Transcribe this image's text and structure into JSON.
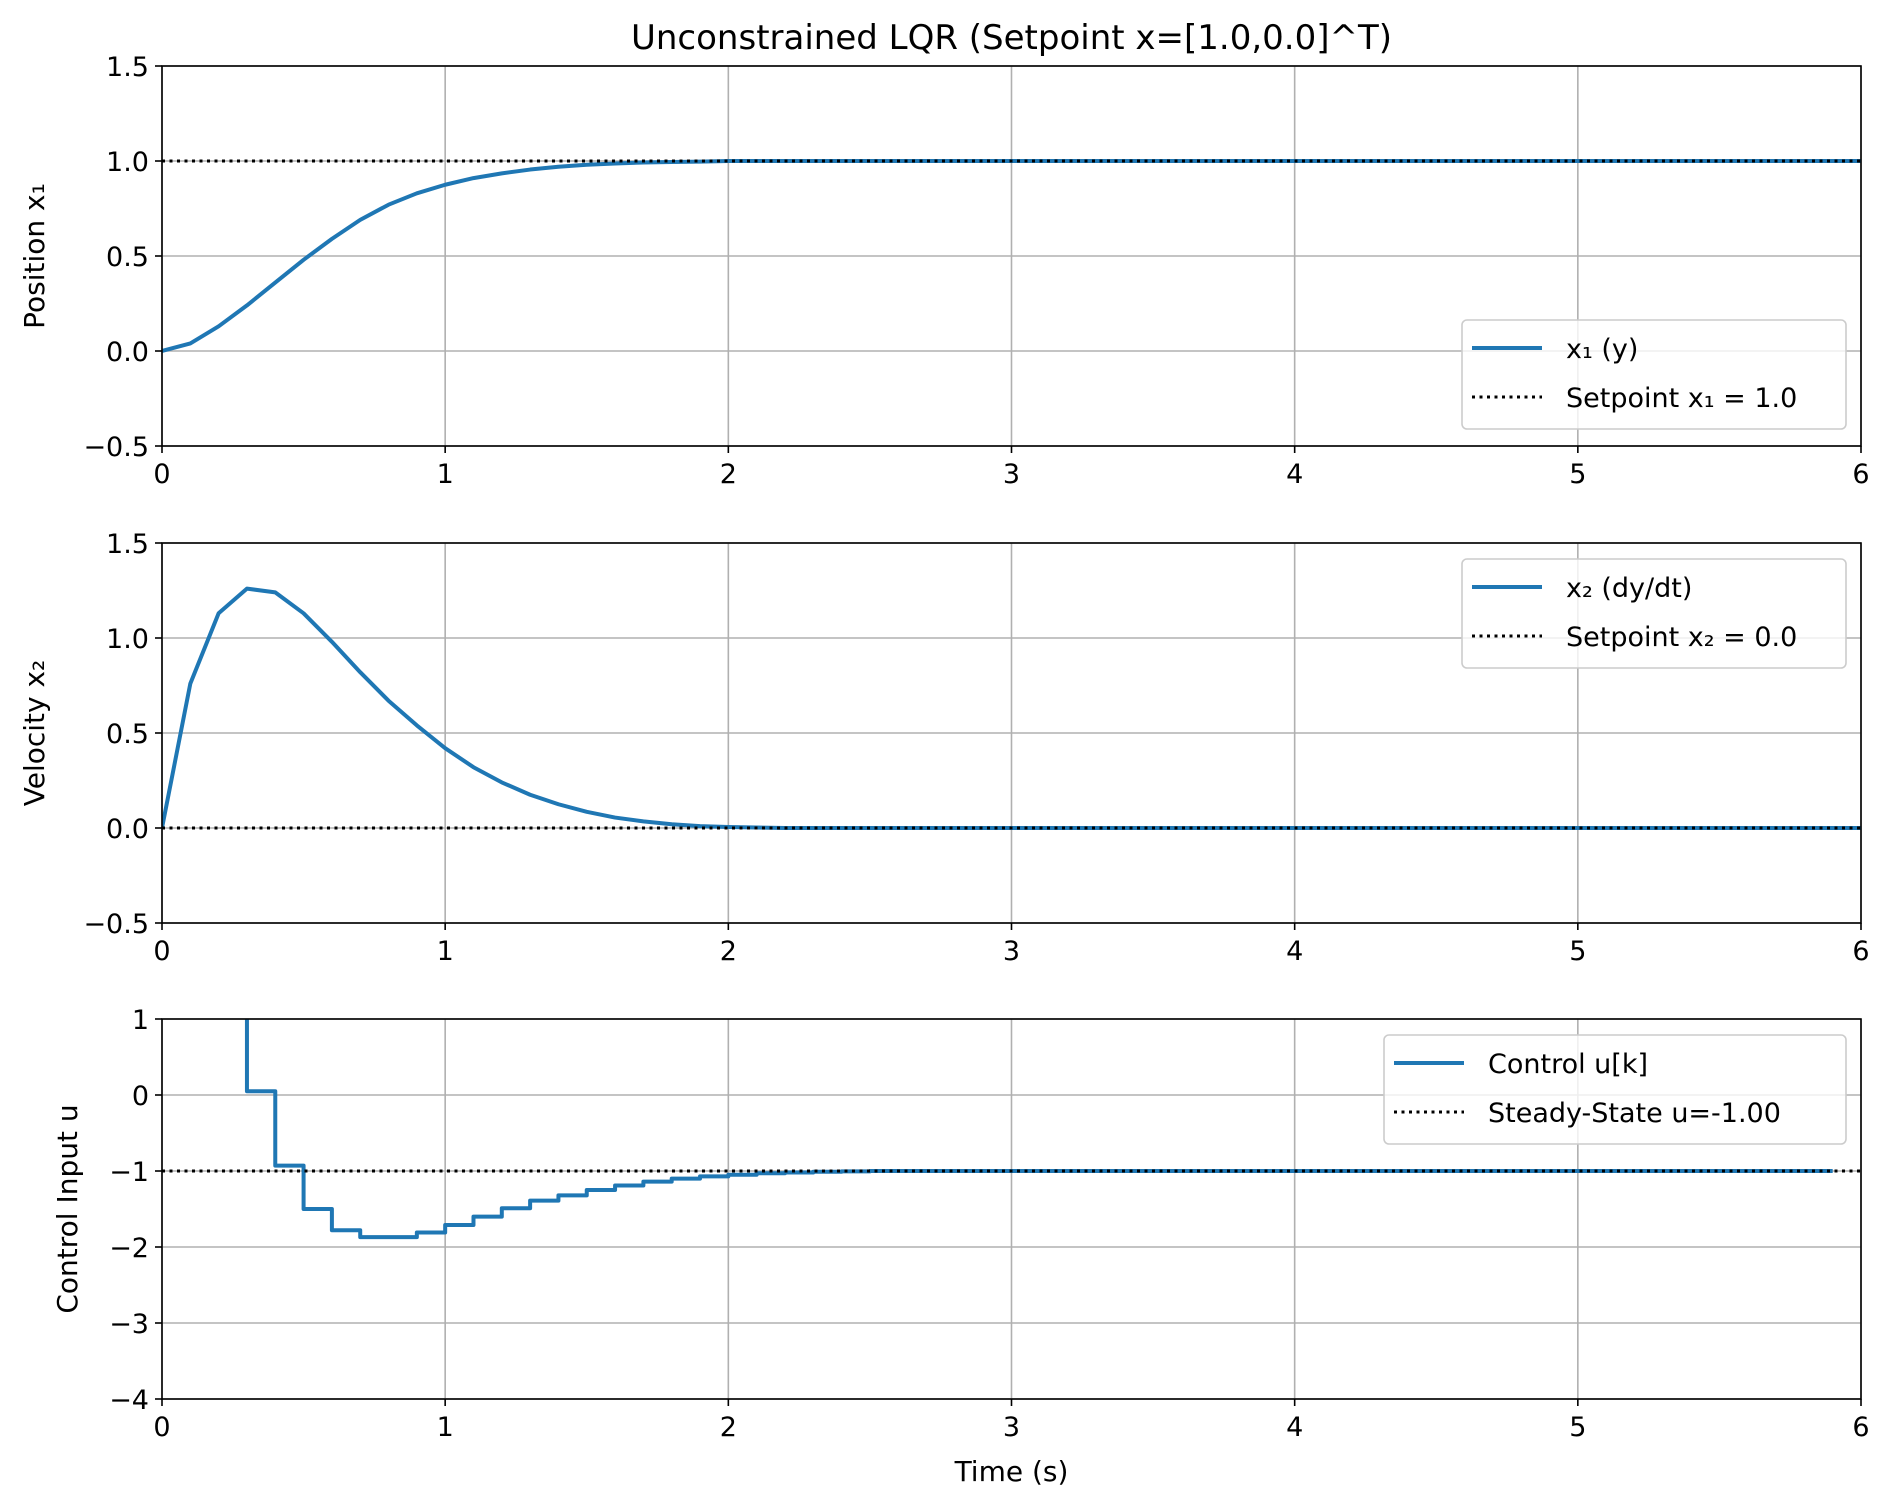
{
  "chart_data": [
    {
      "type": "line",
      "title": "Unconstrained LQR (Setpoint x=[1.0,0.0]^T)",
      "xlabel": "",
      "ylabel": "Position x₁",
      "xlim": [
        0,
        6
      ],
      "ylim": [
        -0.5,
        1.5
      ],
      "xticks": [
        "0",
        "1",
        "2",
        "3",
        "4",
        "5",
        "6"
      ],
      "yticks": [
        "−0.5",
        "0.0",
        "0.5",
        "1.0",
        "1.5"
      ],
      "grid": true,
      "legend_position": "lower-right",
      "series": [
        {
          "name": "x₁ (y)",
          "style": "solid",
          "color": "#1f77b4",
          "x": [
            0.0,
            0.1,
            0.2,
            0.3,
            0.4,
            0.5,
            0.6,
            0.7,
            0.8,
            0.9,
            1.0,
            1.1,
            1.2,
            1.3,
            1.4,
            1.5,
            1.6,
            1.7,
            1.8,
            1.9,
            2.0,
            2.2,
            2.5,
            3.0,
            4.0,
            5.0,
            6.0
          ],
          "y": [
            0.0,
            0.04,
            0.13,
            0.24,
            0.36,
            0.48,
            0.59,
            0.69,
            0.77,
            0.83,
            0.875,
            0.91,
            0.935,
            0.955,
            0.97,
            0.98,
            0.987,
            0.992,
            0.995,
            0.997,
            1.0,
            1.0,
            1.0,
            1.0,
            1.0,
            1.0,
            1.0
          ]
        },
        {
          "name": "Setpoint x₁ = 1.0",
          "style": "dotted",
          "color": "#000000",
          "x": [
            0,
            6
          ],
          "y": [
            1.0,
            1.0
          ]
        }
      ]
    },
    {
      "type": "line",
      "title": "",
      "xlabel": "",
      "ylabel": "Velocity x₂",
      "xlim": [
        0,
        6
      ],
      "ylim": [
        -0.5,
        1.5
      ],
      "xticks": [
        "0",
        "1",
        "2",
        "3",
        "4",
        "5",
        "6"
      ],
      "yticks": [
        "−0.5",
        "0.0",
        "0.5",
        "1.0",
        "1.5"
      ],
      "grid": true,
      "legend_position": "upper-right",
      "series": [
        {
          "name": "x₂ (dy/dt)",
          "style": "solid",
          "color": "#1f77b4",
          "x": [
            0.0,
            0.1,
            0.2,
            0.3,
            0.4,
            0.5,
            0.6,
            0.7,
            0.8,
            0.9,
            1.0,
            1.1,
            1.2,
            1.3,
            1.4,
            1.5,
            1.6,
            1.7,
            1.8,
            1.9,
            2.0,
            2.2,
            2.5,
            3.0,
            4.0,
            5.0,
            6.0
          ],
          "y": [
            0.0,
            0.76,
            1.13,
            1.26,
            1.24,
            1.13,
            0.98,
            0.82,
            0.67,
            0.54,
            0.42,
            0.32,
            0.24,
            0.175,
            0.125,
            0.085,
            0.055,
            0.035,
            0.02,
            0.01,
            0.005,
            0.0,
            0.0,
            0.0,
            0.0,
            0.0,
            0.0
          ]
        },
        {
          "name": "Setpoint x₂ = 0.0",
          "style": "dotted",
          "color": "#000000",
          "x": [
            0,
            6
          ],
          "y": [
            0.0,
            0.0
          ]
        }
      ]
    },
    {
      "type": "line",
      "title": "",
      "xlabel": "Time (s)",
      "ylabel": "Control Input u",
      "xlim": [
        0,
        6
      ],
      "ylim": [
        -4,
        1
      ],
      "xticks": [
        "0",
        "1",
        "2",
        "3",
        "4",
        "5",
        "6"
      ],
      "yticks": [
        "−4",
        "−3",
        "−2",
        "−1",
        "0",
        "1"
      ],
      "grid": true,
      "legend_position": "upper-right",
      "series": [
        {
          "name": "Control u[k]",
          "style": "steps-post",
          "color": "#1f77b4",
          "x": [
            0.3,
            0.4,
            0.5,
            0.6,
            0.7,
            0.8,
            0.9,
            1.0,
            1.1,
            1.2,
            1.3,
            1.4,
            1.5,
            1.6,
            1.7,
            1.8,
            1.9,
            2.0,
            2.1,
            2.2,
            2.3,
            2.4,
            2.5,
            5.9
          ],
          "y": [
            0.05,
            -0.93,
            -1.5,
            -1.78,
            -1.87,
            -1.87,
            -1.81,
            -1.71,
            -1.6,
            -1.49,
            -1.39,
            -1.32,
            -1.25,
            -1.19,
            -1.14,
            -1.1,
            -1.07,
            -1.05,
            -1.03,
            -1.02,
            -1.01,
            -1.005,
            -1.0,
            -1.0
          ],
          "clipped_start": {
            "x": 0.3,
            "y": 1.0
          }
        },
        {
          "name": "Steady-State u=-1.00",
          "style": "dotted",
          "color": "#000000",
          "x": [
            0,
            6
          ],
          "y": [
            -1.0,
            -1.0
          ]
        }
      ]
    }
  ]
}
